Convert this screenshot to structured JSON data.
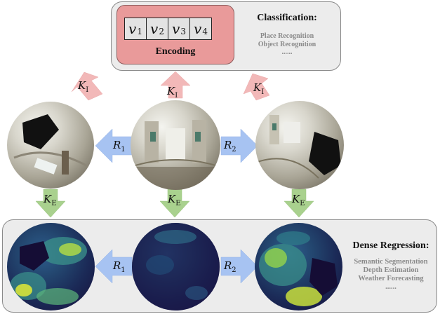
{
  "encoding": {
    "vectors": [
      {
        "sym": "v",
        "sub": "1"
      },
      {
        "sym": "v",
        "sub": "2"
      },
      {
        "sym": "v",
        "sub": "3"
      },
      {
        "sym": "v",
        "sub": "4"
      }
    ],
    "label": "Encoding"
  },
  "classification": {
    "title": "Classification:",
    "tasks": [
      "Place Recognition",
      "Object Recognition",
      "......"
    ]
  },
  "dense_regression": {
    "title": "Dense Regression:",
    "tasks": [
      "Semantic Segmentation",
      "Depth Estimation",
      "Weather Forecasting",
      "......"
    ]
  },
  "operators": {
    "invariant": {
      "sym": "K",
      "sub": "I"
    },
    "equivariant": {
      "sym": "K",
      "sub": "E"
    },
    "rotation1": {
      "sym": "R",
      "sub": "1"
    },
    "rotation2": {
      "sym": "R",
      "sub": "2"
    }
  },
  "colors": {
    "invariant_arrow": "#f2b8b8",
    "equivariant_arrow": "#a9d18e",
    "rotation_arrow": "#a7c3f2",
    "encoding_box": "#e99a9a"
  }
}
